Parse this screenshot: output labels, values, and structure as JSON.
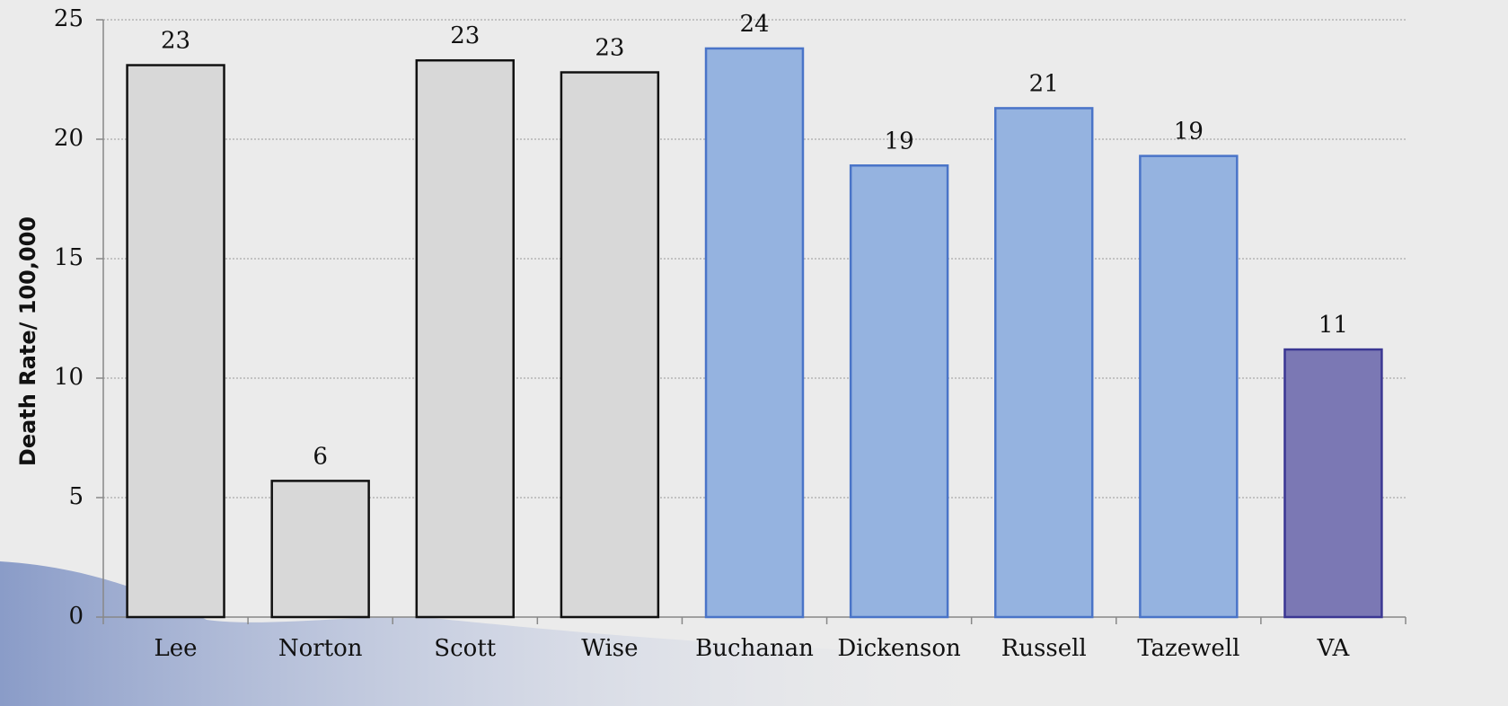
{
  "chart_data": {
    "type": "bar",
    "y_label": "Death Rate/ 100,000",
    "categories": [
      "Lee",
      "Norton",
      "Scott",
      "Wise",
      "Buchanan",
      "Dickenson",
      "Russell",
      "Tazewell",
      "VA"
    ],
    "values": [
      23.1,
      5.7,
      23.3,
      22.8,
      23.8,
      18.9,
      21.3,
      19.3,
      11.2
    ],
    "value_labels": [
      "23",
      "6",
      "23",
      "23",
      "24",
      "19",
      "21",
      "19",
      "11"
    ],
    "colors": [
      "#d8d8d8",
      "#d8d8d8",
      "#d8d8d8",
      "#d8d8d8",
      "#95b3e0",
      "#95b3e0",
      "#95b3e0",
      "#95b3e0",
      "#7b78b4"
    ],
    "edge_colors": [
      "#111111",
      "#111111",
      "#111111",
      "#111111",
      "#4a74c8",
      "#4a74c8",
      "#4a74c8",
      "#4a74c8",
      "#3b3793"
    ],
    "ylim": [
      0,
      25
    ],
    "yticks": [
      0,
      5,
      10,
      15,
      20,
      25
    ],
    "grid": true
  }
}
